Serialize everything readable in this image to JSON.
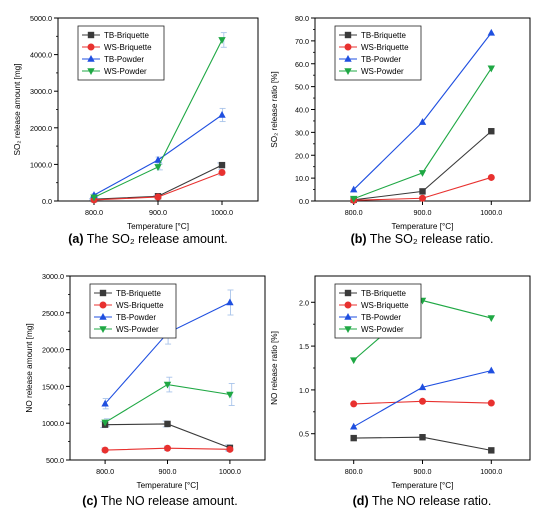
{
  "chart_data": [
    {
      "type": "line",
      "panel": "a",
      "caption": {
        "letter": "(a)",
        "text": "The SO₂ release amount."
      },
      "xlabel": "Temperature [°C]",
      "ylabel": "SO₂ release amount [mg]",
      "categories": [
        "800.0",
        "900.0",
        "1000.0"
      ],
      "ylim": [
        0,
        5000
      ],
      "yticks": [
        "0.0",
        "1000.0",
        "2000.0",
        "3000.0",
        "4000.0",
        "5000.0"
      ],
      "ytick_values": [
        0,
        1000,
        2000,
        3000,
        4000,
        5000
      ],
      "legend_position": "top-left",
      "series": [
        {
          "name": "TB-Briquette",
          "values": [
            50,
            130,
            980
          ],
          "errors": [
            20,
            20,
            60
          ]
        },
        {
          "name": "WS-Briquette",
          "values": [
            30,
            110,
            780
          ],
          "errors": [
            20,
            20,
            80
          ]
        },
        {
          "name": "TB-Powder",
          "values": [
            160,
            1120,
            2350
          ],
          "errors": [
            40,
            80,
            180
          ]
        },
        {
          "name": "WS-Powder",
          "values": [
            100,
            930,
            4400
          ],
          "errors": [
            40,
            80,
            200
          ]
        }
      ]
    },
    {
      "type": "line",
      "panel": "b",
      "caption": {
        "letter": "(b)",
        "text": "The SO₂ release ratio."
      },
      "xlabel": "Temperature [°C]",
      "ylabel": "SO₂ release ratio [%]",
      "categories": [
        "800.0",
        "900.0",
        "1000.0"
      ],
      "ylim": [
        0,
        80
      ],
      "yticks": [
        "0.0",
        "10.0",
        "20.0",
        "30.0",
        "40.0",
        "50.0",
        "60.0",
        "70.0",
        "80.0"
      ],
      "ytick_values": [
        0,
        10,
        20,
        30,
        40,
        50,
        60,
        70,
        80
      ],
      "legend_position": "top-left",
      "series": [
        {
          "name": "TB-Briquette",
          "values": [
            0.5,
            4.2,
            30.5
          ],
          "errors": [
            0,
            0,
            0
          ]
        },
        {
          "name": "WS-Briquette",
          "values": [
            0.3,
            1.2,
            10.3
          ],
          "errors": [
            0,
            0,
            0
          ]
        },
        {
          "name": "TB-Powder",
          "values": [
            5.0,
            34.5,
            73.5
          ],
          "errors": [
            0,
            0,
            0
          ]
        },
        {
          "name": "WS-Powder",
          "values": [
            1.0,
            12.3,
            58.0
          ],
          "errors": [
            0,
            0,
            0
          ]
        }
      ]
    },
    {
      "type": "line",
      "panel": "c",
      "caption": {
        "letter": "(c)",
        "text": "The NO release amount."
      },
      "xlabel": "Temperature [°C]",
      "ylabel": "NO release amount [mg]",
      "categories": [
        "800.0",
        "900.0",
        "1000.0"
      ],
      "ylim": [
        500,
        3000
      ],
      "yticks": [
        "500.0",
        "1000.0",
        "1500.0",
        "2000.0",
        "2500.0",
        "3000.0"
      ],
      "ytick_values": [
        500,
        1000,
        1500,
        2000,
        2500,
        3000
      ],
      "legend_position": "top-left",
      "series": [
        {
          "name": "TB-Briquette",
          "values": [
            980,
            990,
            665
          ],
          "errors": [
            40,
            40,
            40
          ]
        },
        {
          "name": "WS-Briquette",
          "values": [
            635,
            660,
            645
          ],
          "errors": [
            30,
            30,
            30
          ]
        },
        {
          "name": "TB-Powder",
          "values": [
            1265,
            2225,
            2640
          ],
          "errors": [
            70,
            150,
            170
          ]
        },
        {
          "name": "WS-Powder",
          "values": [
            1010,
            1525,
            1390
          ],
          "errors": [
            50,
            100,
            150
          ]
        }
      ]
    },
    {
      "type": "line",
      "panel": "d",
      "caption": {
        "letter": "(d)",
        "text": "The NO release ratio."
      },
      "xlabel": "Temperature [°C]",
      "ylabel": "NO release ratio [%]",
      "categories": [
        "800.0",
        "900.0",
        "1000.0"
      ],
      "ylim": [
        0.2,
        2.3
      ],
      "yticks": [
        "0.5",
        "1.0",
        "1.5",
        "2.0"
      ],
      "ytick_values": [
        0.5,
        1.0,
        1.5,
        2.0
      ],
      "legend_position": "top-left",
      "series": [
        {
          "name": "TB-Briquette",
          "values": [
            0.45,
            0.46,
            0.31
          ],
          "errors": [
            0,
            0,
            0
          ]
        },
        {
          "name": "WS-Briquette",
          "values": [
            0.84,
            0.87,
            0.85
          ],
          "errors": [
            0,
            0,
            0
          ]
        },
        {
          "name": "TB-Powder",
          "values": [
            0.58,
            1.03,
            1.22
          ],
          "errors": [
            0,
            0,
            0
          ]
        },
        {
          "name": "WS-Powder",
          "values": [
            1.34,
            2.02,
            1.82
          ],
          "errors": [
            0,
            0,
            0
          ]
        }
      ]
    }
  ],
  "series_style": [
    {
      "name": "TB-Briquette",
      "color": "#3a3a3a",
      "marker": "square"
    },
    {
      "name": "WS-Briquette",
      "color": "#e8312f",
      "marker": "circle"
    },
    {
      "name": "TB-Powder",
      "color": "#1f4fe0",
      "marker": "triangle-up"
    },
    {
      "name": "WS-Powder",
      "color": "#1fa844",
      "marker": "triangle-down"
    }
  ],
  "error_bar_color": "#a9c4ea"
}
